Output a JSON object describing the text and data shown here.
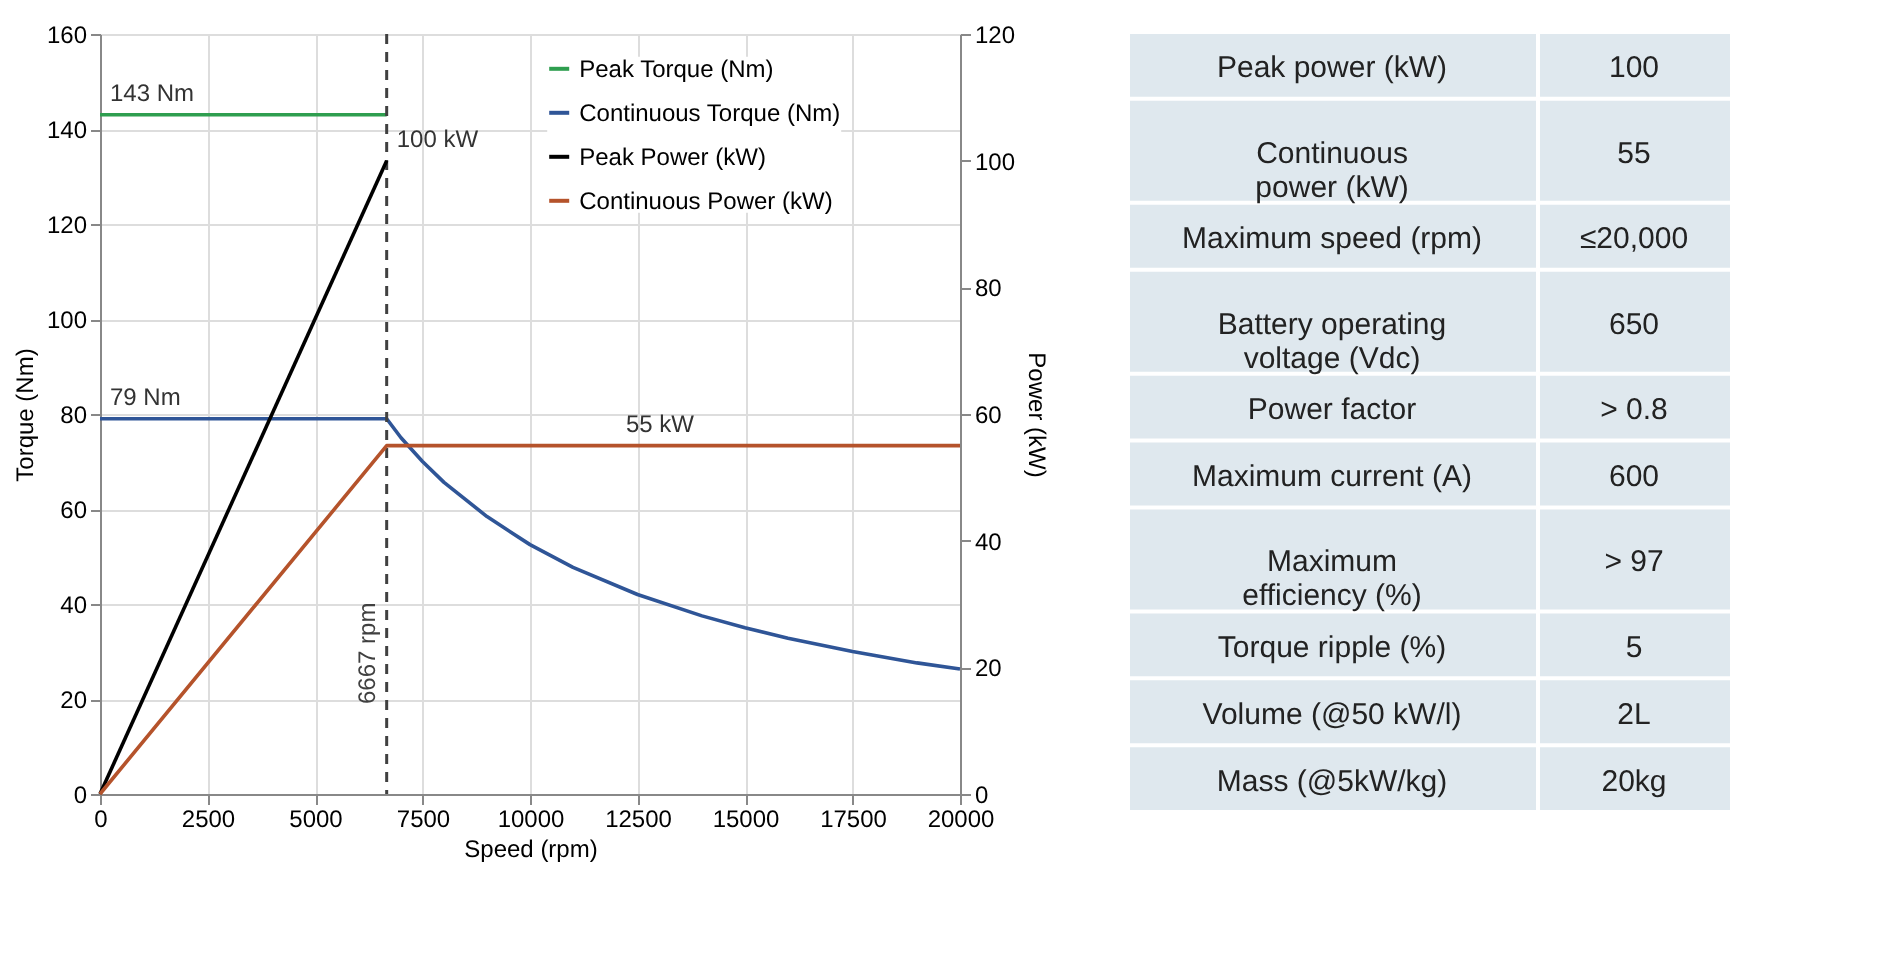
{
  "chart_data": [
    {
      "type": "line",
      "xlabel": "Speed (rpm)",
      "ylabel": "Torque (Nm)",
      "y2label": "Power (kW)",
      "xlim": [
        0,
        20000
      ],
      "xticks": [
        0,
        2500,
        5000,
        7500,
        10000,
        12500,
        15000,
        17500,
        20000
      ],
      "ylim": [
        0,
        160
      ],
      "yticks": [
        0,
        20,
        40,
        60,
        80,
        100,
        120,
        140,
        160
      ],
      "y2lim": [
        0,
        120
      ],
      "y2ticks": [
        0,
        20,
        40,
        60,
        80,
        100,
        120
      ],
      "grid": true,
      "legend": "top right",
      "line_style": "solid",
      "marker": "none",
      "series": [
        {
          "name": "Peak Torque (Nm)",
          "color": "#2e9e4f",
          "x": [
            0,
            6667
          ],
          "values": [
            143,
            143
          ]
        },
        {
          "name": "Continuous Torque (Nm)",
          "color": "#2f5597",
          "x": [
            0,
            6667,
            7000,
            7500,
            8000,
            9000,
            10000,
            11000,
            12500,
            14000,
            15000,
            16000,
            17500,
            19000,
            20000
          ],
          "values": [
            79,
            79,
            75,
            70,
            65.6,
            58.4,
            52.5,
            47.7,
            42,
            37.5,
            35,
            32.8,
            30,
            27.6,
            26.3
          ]
        },
        {
          "name": "Peak Power (kW)",
          "color": "#000000",
          "axis": "y2",
          "x": [
            0,
            6667
          ],
          "values": [
            0,
            100
          ]
        },
        {
          "name": "Continuous Power (kW)",
          "color": "#b5532b",
          "axis": "y2",
          "x": [
            0,
            6667,
            20000
          ],
          "values": [
            0,
            55,
            55
          ]
        }
      ],
      "ref_lines": [
        {
          "axis": "x",
          "value": 6667,
          "label": "6667 rpm",
          "color": "#404040",
          "line_style": "dashed"
        }
      ],
      "annotations": [
        {
          "text": "143 Nm",
          "x": 0,
          "y": 143
        },
        {
          "text": "79 Nm",
          "x": 0,
          "y": 79
        },
        {
          "text": "100 kW",
          "x": 6667,
          "y": 133.3
        },
        {
          "text": "55 kW",
          "x": 12000,
          "y": 73.3
        }
      ]
    },
    {
      "type": "other",
      "annotations": [
        "Peak power (kW)",
        "100",
        "Continuous power (kW)",
        "55",
        "Maximum speed (rpm)",
        "≤20,000",
        "Battery operating voltage (Vdc)",
        "650",
        "Power factor",
        "> 0.8",
        "Maximum current (A)",
        "600",
        "Maximum efficiency (%)",
        "> 97",
        "Torque ripple (%)",
        "5",
        "Volume (@50 kW/l)",
        "2L",
        "Mass (@5kW/kg)",
        "20kg"
      ]
    }
  ]
}
